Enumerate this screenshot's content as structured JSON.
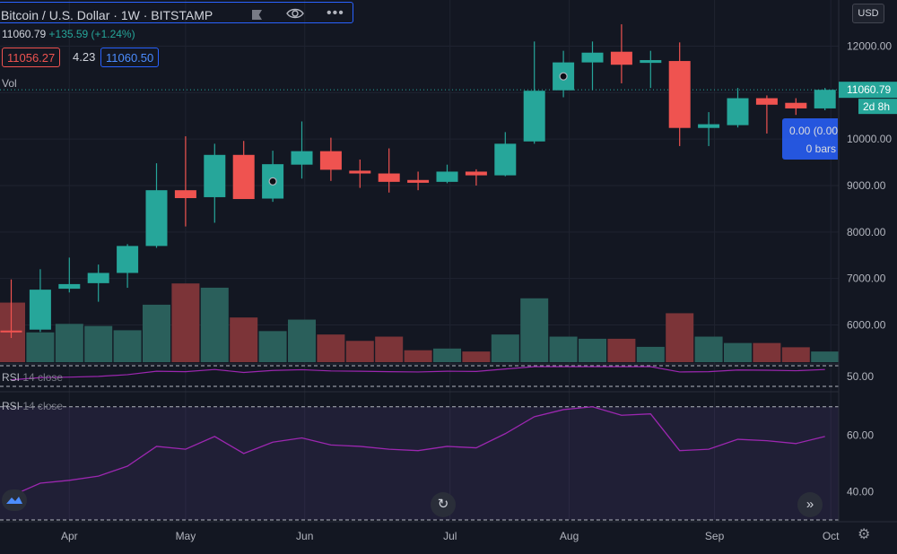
{
  "header": {
    "symbol": "Bitcoin / U.S. Dollar · 1W · BITSTAMP",
    "price": "11060.79",
    "change": "+135.59 (+1.24%)",
    "bid": "11056.27",
    "spread": "4.23",
    "ask": "11060.50",
    "volume_label": "Vol",
    "currency": "USD"
  },
  "tooltip": {
    "line1": "0.00 (0.00",
    "line2": "0 bars"
  },
  "price_labels": {
    "last": "11060.79",
    "countdown": "2d 8h"
  },
  "rsi_panels": [
    {
      "label": "RSI",
      "params": "14 close"
    },
    {
      "label": "RSI",
      "params": "14 close"
    }
  ],
  "icons": [
    "flag-icon",
    "eye-icon",
    "more-icon",
    "tradingview-logo-icon",
    "reset-icon",
    "scroll-right-icon",
    "settings-icon"
  ],
  "colors": {
    "up": "#26a69a",
    "down": "#ef5350",
    "rsi_line": "#9c27b0",
    "rsi_band": "#7e57c2",
    "accent": "#2962ff"
  },
  "chart_data": [
    {
      "type": "candlestick",
      "ylim": [
        5200,
        12800
      ],
      "y_ticks": [
        6000,
        7000,
        8000,
        9000,
        10000,
        11000,
        12000
      ],
      "y_tick_labels": [
        "6000.00",
        "7000.00",
        "8000.00",
        "9000.00",
        "10000.00",
        "11000.00",
        "12000.00"
      ],
      "x_tick_labels": [
        "Apr",
        "May",
        "Jun",
        "Jul",
        "Aug",
        "Sep",
        "Oct"
      ],
      "last_price": 11060.79,
      "candles": [
        {
          "o": 5880,
          "h": 6980,
          "l": 5720,
          "c": 5840
        },
        {
          "o": 5900,
          "h": 7200,
          "l": 5850,
          "c": 6760
        },
        {
          "o": 6780,
          "h": 7450,
          "l": 6700,
          "c": 6880
        },
        {
          "o": 6900,
          "h": 7300,
          "l": 6500,
          "c": 7120
        },
        {
          "o": 7120,
          "h": 7740,
          "l": 6800,
          "c": 7700
        },
        {
          "o": 7700,
          "h": 9480,
          "l": 7660,
          "c": 8900
        },
        {
          "o": 8900,
          "h": 10060,
          "l": 8120,
          "c": 8730
        },
        {
          "o": 8750,
          "h": 9900,
          "l": 8200,
          "c": 9660
        },
        {
          "o": 9660,
          "h": 9960,
          "l": 8720,
          "c": 8710
        },
        {
          "o": 8720,
          "h": 9750,
          "l": 8650,
          "c": 9460
        },
        {
          "o": 9450,
          "h": 10380,
          "l": 9150,
          "c": 9740
        },
        {
          "o": 9740,
          "h": 10030,
          "l": 9100,
          "c": 9340
        },
        {
          "o": 9320,
          "h": 9560,
          "l": 8950,
          "c": 9260
        },
        {
          "o": 9260,
          "h": 9800,
          "l": 8850,
          "c": 9080
        },
        {
          "o": 9120,
          "h": 9300,
          "l": 8900,
          "c": 9060
        },
        {
          "o": 9080,
          "h": 9450,
          "l": 9050,
          "c": 9300
        },
        {
          "o": 9300,
          "h": 9350,
          "l": 9000,
          "c": 9220
        },
        {
          "o": 9220,
          "h": 10150,
          "l": 9200,
          "c": 9900
        },
        {
          "o": 9950,
          "h": 12100,
          "l": 9900,
          "c": 11040
        },
        {
          "o": 11050,
          "h": 11900,
          "l": 10900,
          "c": 11650
        },
        {
          "o": 11650,
          "h": 12100,
          "l": 11050,
          "c": 11860
        },
        {
          "o": 11880,
          "h": 12470,
          "l": 11200,
          "c": 11600
        },
        {
          "o": 11640,
          "h": 11900,
          "l": 11100,
          "c": 11700
        },
        {
          "o": 11680,
          "h": 12080,
          "l": 9850,
          "c": 10240
        },
        {
          "o": 10240,
          "h": 10580,
          "l": 9850,
          "c": 10320
        },
        {
          "o": 10300,
          "h": 11100,
          "l": 10250,
          "c": 10880
        },
        {
          "o": 10880,
          "h": 10940,
          "l": 10120,
          "c": 10740
        },
        {
          "o": 10780,
          "h": 10880,
          "l": 10520,
          "c": 10660
        },
        {
          "o": 10660,
          "h": 11100,
          "l": 10620,
          "c": 11060
        }
      ],
      "volume": [
        6600,
        5900,
        6100,
        6050,
        5950,
        6550,
        7050,
        6950,
        6250,
        5930,
        6200,
        5850,
        5700,
        5800,
        5480,
        5520,
        5450,
        5850,
        6700,
        5800,
        5750,
        5750,
        5560,
        6350,
        5800,
        5650,
        5650,
        5550,
        5450
      ]
    },
    {
      "type": "line",
      "name": "RSI 14 close",
      "ylim": [
        30,
        75
      ],
      "y_ticks": [
        40,
        50,
        60
      ],
      "y_tick_labels": [
        "40.00",
        "50.00",
        "60.00"
      ],
      "bands": [
        30,
        70
      ],
      "values": [
        38.5,
        43.0,
        44.0,
        45.5,
        49.0,
        56.0,
        55.0,
        59.5,
        53.5,
        57.5,
        59.0,
        56.5,
        56.0,
        55.0,
        54.5,
        56.0,
        55.5,
        60.5,
        66.5,
        69.0,
        70.0,
        67.0,
        67.5,
        54.5,
        55.0,
        58.5,
        58.0,
        57.0,
        59.5
      ]
    }
  ]
}
